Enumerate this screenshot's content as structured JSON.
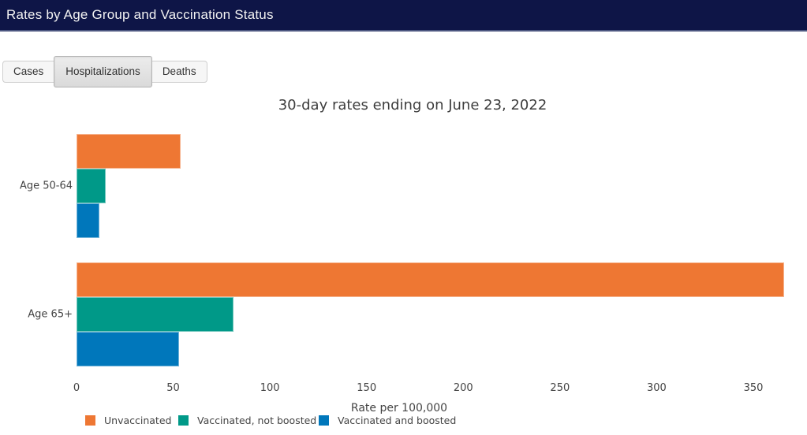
{
  "header": {
    "title": "Rates by Age Group and Vaccination Status"
  },
  "tabs": [
    {
      "label": "Cases",
      "selected": false
    },
    {
      "label": "Hospitalizations",
      "selected": true
    },
    {
      "label": "Deaths",
      "selected": false
    }
  ],
  "chart_data": {
    "type": "bar",
    "orientation": "horizontal",
    "title": "30-day rates ending on June 23, 2022",
    "categories": [
      "Age 50-64",
      "Age 65+"
    ],
    "series": [
      {
        "name": "Unvaccinated",
        "color": "#EE7733",
        "values": [
          54,
          366
        ]
      },
      {
        "name": "Vaccinated, not boosted",
        "color": "#009988",
        "values": [
          15,
          81
        ]
      },
      {
        "name": "Vaccinated and boosted",
        "color": "#0077BB",
        "values": [
          12,
          53
        ]
      }
    ],
    "xlabel": "Rate per 100,000",
    "x_ticks": [
      0,
      50,
      100,
      150,
      200,
      250,
      300,
      350
    ],
    "xlim": [
      0,
      366
    ],
    "grid": false,
    "legend_position": "bottom"
  }
}
